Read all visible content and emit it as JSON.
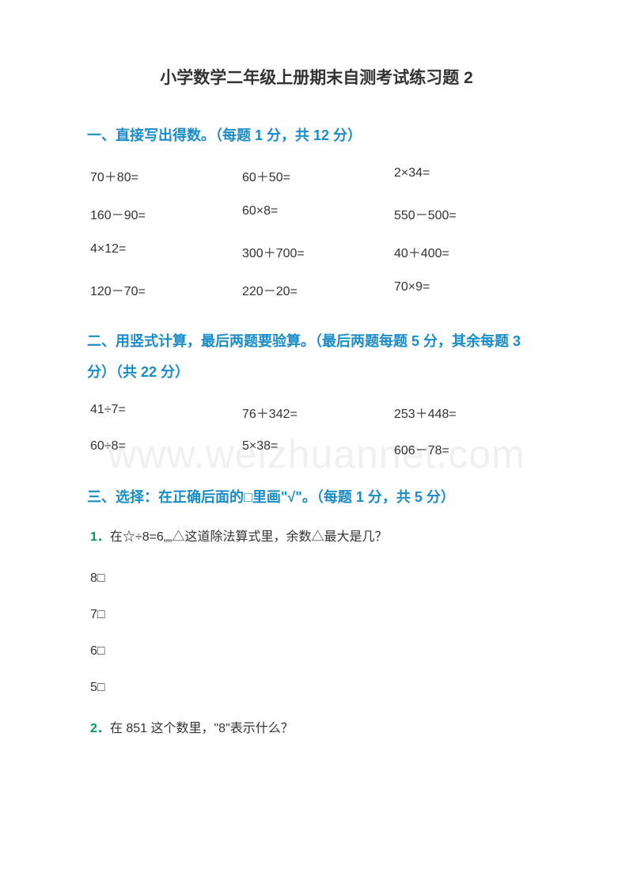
{
  "colors": {
    "title": "#333333",
    "section": "#1a8cc8",
    "body": "#333333",
    "qnum": "#009966",
    "watermark": "#f0f0f0",
    "background": "#ffffff"
  },
  "fonts": {
    "title_size_pt": 16,
    "section_size_pt": 13.5,
    "body_size_pt": 12
  },
  "title": "小学数学二年级上册期末自测考试练习题 2",
  "watermark": "www.weizhuannet.com",
  "sections": {
    "s1": {
      "heading": "一、直接写出得数。（每题 1 分，共 12 分）",
      "problems": [
        "70＋80=",
        "60＋50=",
        "2×34=",
        "160－90=",
        "60×8=",
        "550－500=",
        "4×12=",
        "300＋700=",
        "40＋400=",
        "120－70=",
        "220－20=",
        "70×9="
      ]
    },
    "s2": {
      "heading": "二、用竖式计算，最后两题要验算。（最后两题每题 5 分，其余每题 3 分）（共 22 分）",
      "problems": [
        "41÷7=",
        "76＋342=",
        "253＋448=",
        "60÷8=",
        "5×38=",
        "606－78="
      ]
    },
    "s3": {
      "heading": "三、选择：在正确后面的□里画\"√\"。（每题 1 分，共 5 分）",
      "q1": {
        "num": "1．",
        "text": "在☆÷8=6„„△这道除法算式里，余数△最大是几？",
        "options": [
          "8□",
          "7□",
          "6□",
          "5□"
        ]
      },
      "q2": {
        "num": "2．",
        "text": "在 851 这个数里，\"8\"表示什么？"
      }
    }
  }
}
